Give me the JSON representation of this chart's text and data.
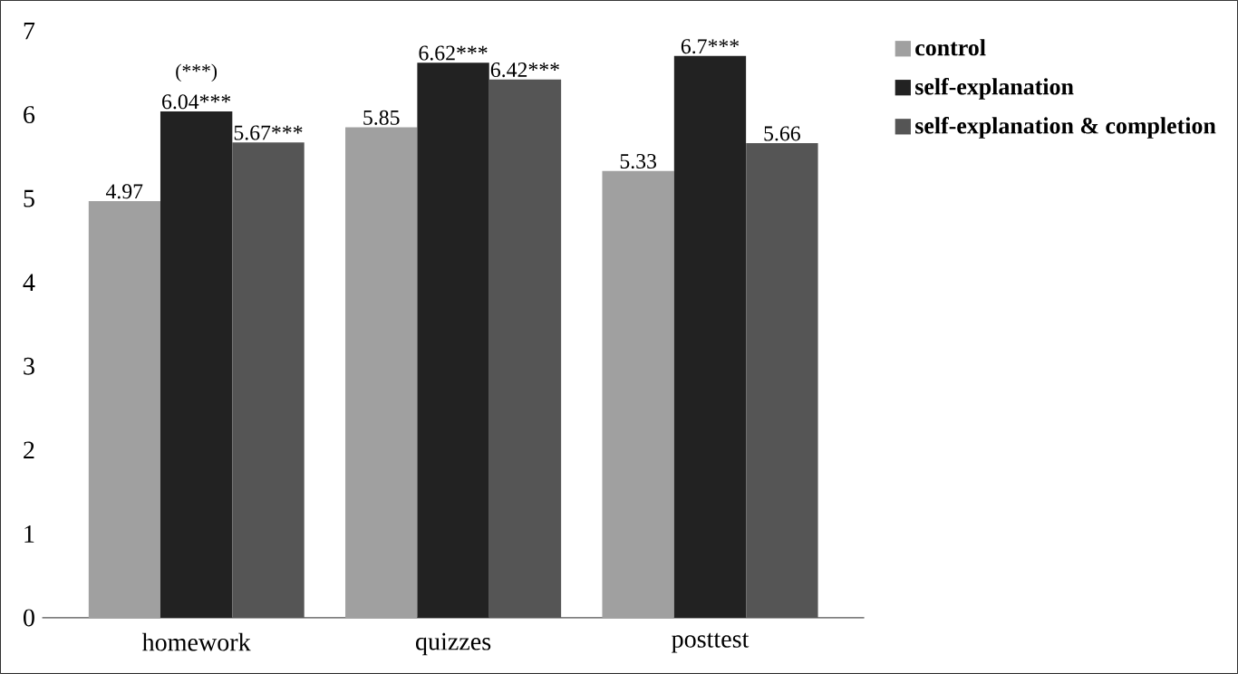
{
  "chart_data": {
    "type": "bar",
    "categories": [
      "homework",
      "quizzes",
      "posttest"
    ],
    "series": [
      {
        "name": "control",
        "color": "#a0a0a0",
        "values": [
          4.97,
          5.85,
          5.33
        ],
        "value_labels": [
          "4.97",
          "5.85",
          "5.33"
        ]
      },
      {
        "name": "self-explanation",
        "color": "#222222",
        "values": [
          6.04,
          6.62,
          6.7
        ],
        "value_labels": [
          "6.04***",
          "6.62***",
          "6.7***"
        ]
      },
      {
        "name": "self-explanation & completion",
        "color": "#555555",
        "values": [
          5.67,
          6.42,
          5.66
        ],
        "value_labels": [
          "5.67***",
          "6.42***",
          "5.66"
        ]
      }
    ],
    "annotations": [
      "(***)"
    ],
    "ylim": [
      0,
      7
    ],
    "yticks": [
      0,
      1,
      2,
      3,
      4,
      5,
      6,
      7
    ],
    "legend": "right"
  }
}
